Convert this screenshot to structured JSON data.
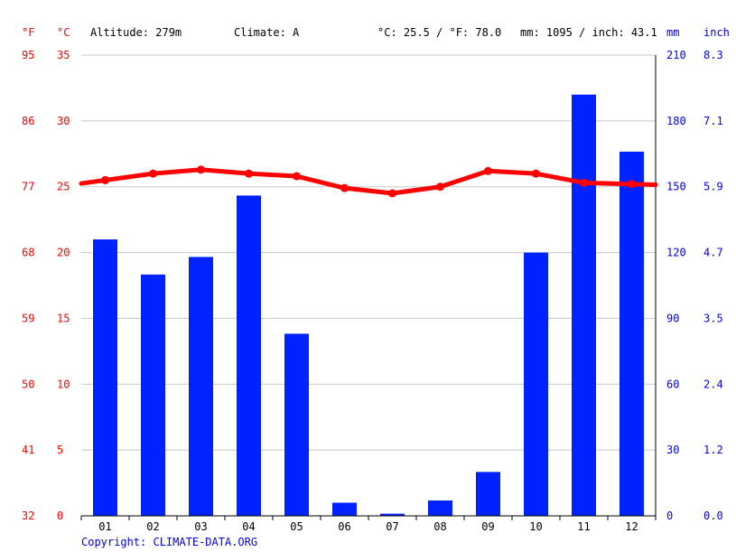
{
  "header": {
    "unit_f": "°F",
    "unit_c": "°C",
    "altitude": "Altitude: 279m",
    "climate": "Climate: A",
    "temp_avg": "°C: 25.5 / °F: 78.0",
    "precip_avg": "mm: 1095 / inch: 43.1",
    "unit_mm": "mm",
    "unit_inch": "inch"
  },
  "copyright": "Copyright: CLIMATE-DATA.ORG",
  "colors": {
    "temperature": "#ff0000",
    "precipitation": "#0022ff",
    "grid": "#c8c8c8",
    "axis": "#000000",
    "left_labels": "#ff0000",
    "right_labels": "#0000ff"
  },
  "chart_data": {
    "type": "bar",
    "categories": [
      "01",
      "02",
      "03",
      "04",
      "05",
      "06",
      "07",
      "08",
      "09",
      "10",
      "11",
      "12"
    ],
    "series": [
      {
        "type": "bar",
        "axis": "right",
        "unit": "mm",
        "values": [
          126,
          110,
          118,
          146,
          83,
          6,
          1,
          7,
          20,
          120,
          192,
          166
        ]
      },
      {
        "type": "line",
        "axis": "left",
        "unit": "°C",
        "values": [
          25.5,
          26.0,
          26.3,
          26.0,
          25.8,
          24.9,
          24.5,
          25.0,
          26.2,
          26.0,
          25.3,
          25.2
        ]
      }
    ],
    "y_left_celsius": {
      "ticks": [
        "0",
        "5",
        "10",
        "15",
        "20",
        "25",
        "30",
        "35"
      ],
      "range": [
        0,
        35
      ]
    },
    "y_left_fahrenheit": {
      "ticks": [
        "32",
        "41",
        "50",
        "59",
        "68",
        "77",
        "86",
        "95"
      ]
    },
    "y_right_mm": {
      "ticks": [
        "0",
        "30",
        "60",
        "90",
        "120",
        "150",
        "180",
        "210"
      ],
      "range": [
        0,
        210
      ]
    },
    "y_right_inch": {
      "ticks": [
        "0.0",
        "1.2",
        "2.4",
        "3.5",
        "4.7",
        "5.9",
        "7.1",
        "8.3"
      ]
    },
    "grid": true
  }
}
